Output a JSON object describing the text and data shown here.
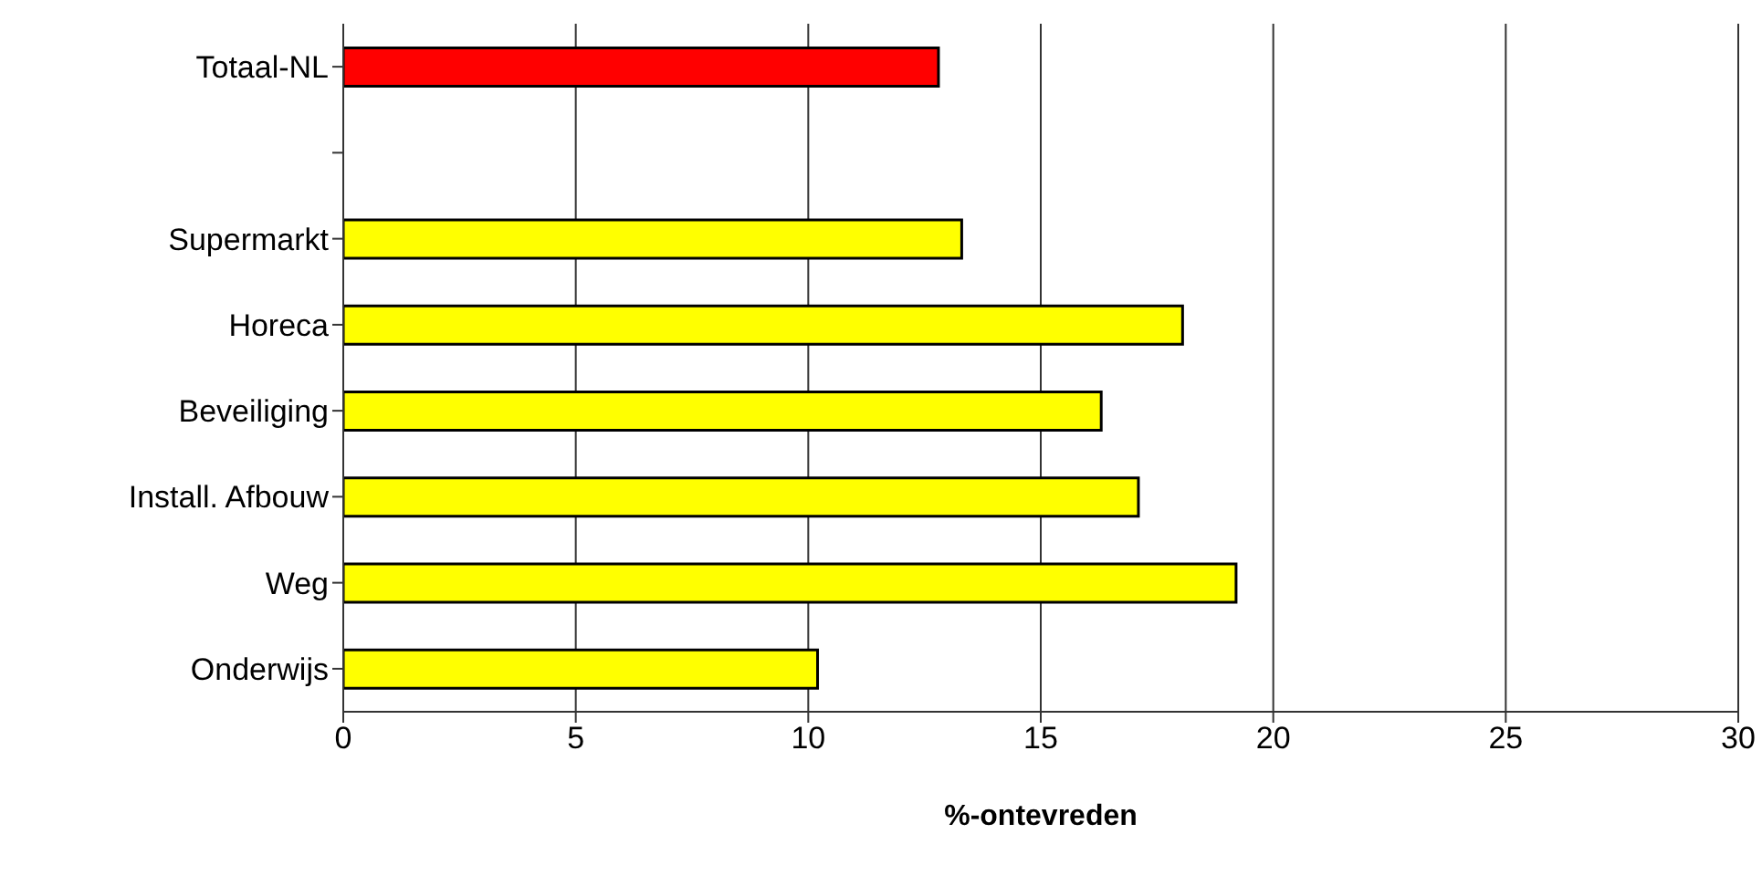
{
  "chart_data": {
    "type": "bar",
    "orientation": "horizontal",
    "xlabel": "%-ontevreden",
    "categories": [
      "Totaal-NL",
      null,
      "Supermarkt",
      "Horeca",
      "Beveiliging",
      "Install. Afbouw",
      "Weg",
      "Onderwijs"
    ],
    "values": [
      12.8,
      null,
      13.3,
      18.05,
      16.3,
      17.1,
      19.2,
      10.2
    ],
    "colors": [
      "#ff0000",
      null,
      "#ffff00",
      "#ffff00",
      "#ffff00",
      "#ffff00",
      "#ffff00",
      "#ffff00"
    ],
    "xlim": [
      0,
      30
    ],
    "xticks": [
      0,
      5,
      10,
      15,
      20,
      25,
      30
    ],
    "grid": "x",
    "legend": false
  }
}
